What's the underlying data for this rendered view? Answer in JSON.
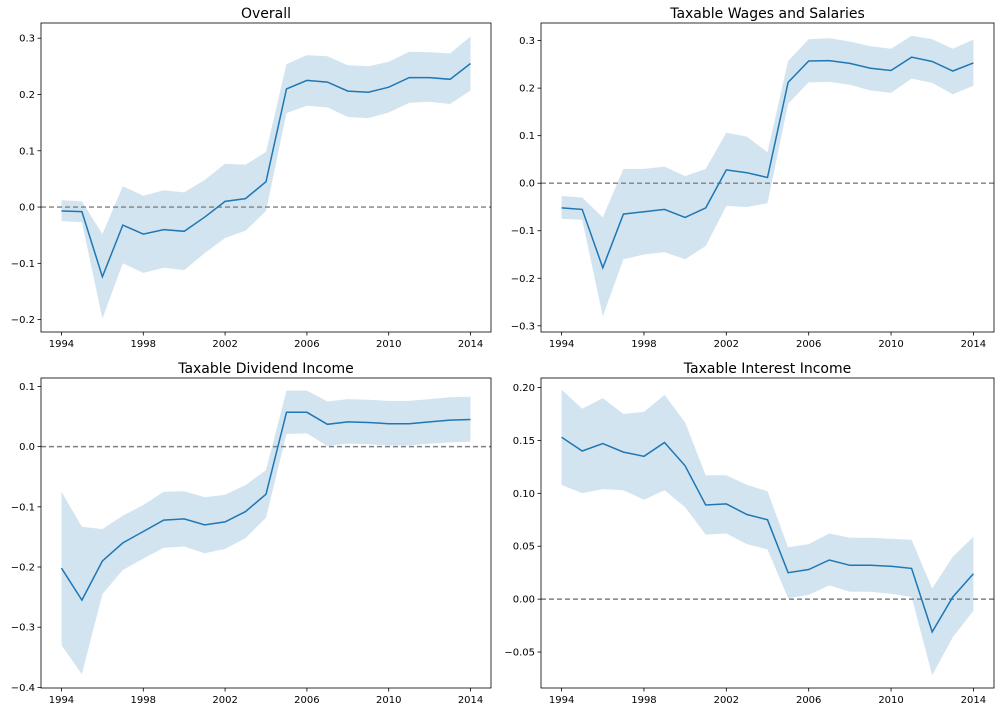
{
  "chart_data": [
    {
      "type": "line",
      "title": "Overall",
      "x": [
        1994,
        1995,
        1996,
        1997,
        1998,
        1999,
        2000,
        2001,
        2002,
        2003,
        2004,
        2005,
        2006,
        2007,
        2008,
        2009,
        2010,
        2011,
        2012,
        2013,
        2014
      ],
      "series": [
        {
          "values": [
            -0.007,
            -0.008,
            -0.124,
            -0.032,
            -0.048,
            -0.04,
            -0.043,
            -0.018,
            0.01,
            0.015,
            0.045,
            0.21,
            0.225,
            0.222,
            0.206,
            0.204,
            0.213,
            0.23,
            0.23,
            0.227,
            0.255
          ],
          "lower": [
            -0.025,
            -0.027,
            -0.198,
            -0.1,
            -0.117,
            -0.108,
            -0.112,
            -0.082,
            -0.055,
            -0.042,
            -0.007,
            0.167,
            0.18,
            0.177,
            0.16,
            0.158,
            0.168,
            0.185,
            0.187,
            0.183,
            0.207
          ],
          "upper": [
            0.012,
            0.01,
            -0.048,
            0.037,
            0.02,
            0.03,
            0.026,
            0.048,
            0.077,
            0.075,
            0.098,
            0.254,
            0.27,
            0.268,
            0.252,
            0.25,
            0.258,
            0.276,
            0.275,
            0.273,
            0.303
          ]
        }
      ],
      "xticks": [
        "1994",
        "1998",
        "2002",
        "2006",
        "2010",
        "2014"
      ],
      "yticks": [
        "−0.2",
        "−0.1",
        "0.0",
        "0.1",
        "0.2",
        "0.3"
      ],
      "ylim": [
        -0.222,
        0.327
      ],
      "xlim": [
        1993.0,
        2015.0
      ],
      "reference_line": 0,
      "grid": false,
      "colors": {
        "line": "#1f77b4",
        "band": "#1f77b4",
        "reference": "#808080"
      }
    },
    {
      "type": "line",
      "title": "Taxable Wages and Salaries",
      "x": [
        1994,
        1995,
        1996,
        1997,
        1998,
        1999,
        2000,
        2001,
        2002,
        2003,
        2004,
        2005,
        2006,
        2007,
        2008,
        2009,
        2010,
        2011,
        2012,
        2013,
        2014
      ],
      "series": [
        {
          "values": [
            -0.052,
            -0.055,
            -0.178,
            -0.065,
            -0.06,
            -0.055,
            -0.072,
            -0.052,
            0.028,
            0.022,
            0.012,
            0.212,
            0.257,
            0.258,
            0.252,
            0.242,
            0.237,
            0.265,
            0.256,
            0.236,
            0.253
          ],
          "lower": [
            -0.075,
            -0.077,
            -0.28,
            -0.16,
            -0.15,
            -0.145,
            -0.16,
            -0.132,
            -0.048,
            -0.05,
            -0.042,
            0.167,
            0.212,
            0.213,
            0.207,
            0.195,
            0.19,
            0.22,
            0.211,
            0.187,
            0.205
          ],
          "upper": [
            -0.027,
            -0.03,
            -0.072,
            0.03,
            0.03,
            0.035,
            0.015,
            0.03,
            0.106,
            0.098,
            0.065,
            0.257,
            0.303,
            0.305,
            0.298,
            0.288,
            0.283,
            0.31,
            0.303,
            0.283,
            0.302
          ]
        }
      ],
      "xticks": [
        "1994",
        "1998",
        "2002",
        "2006",
        "2010",
        "2014"
      ],
      "yticks": [
        "−0.3",
        "−0.2",
        "−0.1",
        "0.0",
        "0.1",
        "0.2",
        "0.3"
      ],
      "ylim": [
        -0.313,
        0.337
      ],
      "xlim": [
        1993.0,
        2015.0
      ],
      "reference_line": 0,
      "grid": false,
      "colors": {
        "line": "#1f77b4",
        "band": "#1f77b4",
        "reference": "#808080"
      }
    },
    {
      "type": "line",
      "title": "Taxable Dividend Income",
      "x": [
        1994,
        1995,
        1996,
        1997,
        1998,
        1999,
        2000,
        2001,
        2002,
        2003,
        2004,
        2005,
        2006,
        2007,
        2008,
        2009,
        2010,
        2011,
        2012,
        2013,
        2014
      ],
      "series": [
        {
          "values": [
            -0.202,
            -0.255,
            -0.19,
            -0.16,
            -0.141,
            -0.122,
            -0.12,
            -0.13,
            -0.125,
            -0.108,
            -0.079,
            0.057,
            0.057,
            0.037,
            0.041,
            0.04,
            0.038,
            0.038,
            0.041,
            0.044,
            0.045
          ],
          "lower": [
            -0.33,
            -0.378,
            -0.245,
            -0.205,
            -0.186,
            -0.168,
            -0.166,
            -0.177,
            -0.17,
            -0.152,
            -0.118,
            0.021,
            0.022,
            0.001,
            0.005,
            0.004,
            0.002,
            0.002,
            0.005,
            0.007,
            0.008
          ],
          "upper": [
            -0.075,
            -0.133,
            -0.137,
            -0.115,
            -0.097,
            -0.075,
            -0.074,
            -0.084,
            -0.08,
            -0.064,
            -0.039,
            0.093,
            0.093,
            0.075,
            0.079,
            0.078,
            0.076,
            0.076,
            0.079,
            0.082,
            0.083
          ]
        }
      ],
      "xticks": [
        "1994",
        "1998",
        "2002",
        "2006",
        "2010",
        "2014"
      ],
      "yticks": [
        "−0.4",
        "−0.3",
        "−0.2",
        "−0.1",
        "0.0",
        "0.1"
      ],
      "ylim": [
        -0.401,
        0.114
      ],
      "xlim": [
        1993.0,
        2015.0
      ],
      "reference_line": 0,
      "grid": false,
      "colors": {
        "line": "#1f77b4",
        "band": "#1f77b4",
        "reference": "#808080"
      }
    },
    {
      "type": "line",
      "title": "Taxable Interest Income",
      "x": [
        1994,
        1995,
        1996,
        1997,
        1998,
        1999,
        2000,
        2001,
        2002,
        2003,
        2004,
        2005,
        2006,
        2007,
        2008,
        2009,
        2010,
        2011,
        2012,
        2013,
        2014
      ],
      "series": [
        {
          "values": [
            0.153,
            0.14,
            0.147,
            0.139,
            0.135,
            0.148,
            0.126,
            0.089,
            0.09,
            0.08,
            0.075,
            0.025,
            0.028,
            0.037,
            0.032,
            0.032,
            0.031,
            0.029,
            -0.031,
            0.002,
            0.024
          ],
          "lower": [
            0.108,
            0.1,
            0.104,
            0.103,
            0.094,
            0.103,
            0.087,
            0.061,
            0.062,
            0.052,
            0.047,
            0.001,
            0.004,
            0.013,
            0.007,
            0.007,
            0.005,
            0.002,
            -0.072,
            -0.036,
            -0.011
          ],
          "upper": [
            0.198,
            0.18,
            0.19,
            0.175,
            0.177,
            0.193,
            0.167,
            0.117,
            0.117,
            0.108,
            0.102,
            0.049,
            0.052,
            0.062,
            0.058,
            0.058,
            0.057,
            0.056,
            0.01,
            0.04,
            0.059
          ]
        }
      ],
      "xticks": [
        "1994",
        "1998",
        "2002",
        "2006",
        "2010",
        "2014"
      ],
      "yticks": [
        "−0.05",
        "0.00",
        "0.05",
        "0.10",
        "0.15",
        "0.20"
      ],
      "ylim": [
        -0.084,
        0.209
      ],
      "xlim": [
        1993.0,
        2015.0
      ],
      "reference_line": 0,
      "grid": false,
      "colors": {
        "line": "#1f77b4",
        "band": "#1f77b4",
        "reference": "#808080"
      }
    }
  ]
}
